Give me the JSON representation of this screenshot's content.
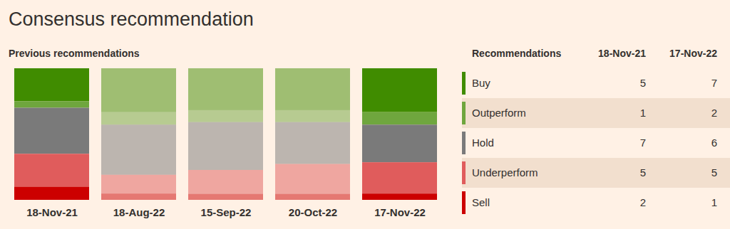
{
  "chart_data": {
    "type": "bar",
    "title": "Consensus recommendation",
    "subtitle": "Previous recommendations",
    "legend_title": "Recommendations",
    "legend": "right",
    "stacked": true,
    "tick_labels": "x",
    "categories": [
      "18-Nov-21",
      "18-Aug-22",
      "15-Sep-22",
      "20-Oct-22",
      "17-Nov-22"
    ],
    "series": [
      {
        "name": "Buy",
        "color": "#408c00",
        "values": [
          5,
          7,
          7,
          7,
          7
        ]
      },
      {
        "name": "Outperform",
        "color": "#6fa63e",
        "values": [
          1,
          2,
          2,
          2,
          2
        ]
      },
      {
        "name": "Hold",
        "color": "#7a7a7a",
        "values": [
          7,
          8,
          8,
          7,
          6
        ]
      },
      {
        "name": "Underperform",
        "color": "#e05c5c",
        "values": [
          5,
          3,
          4,
          5,
          5
        ]
      },
      {
        "name": "Sell",
        "color": "#cc0000",
        "values": [
          2,
          1,
          1,
          1,
          1
        ]
      }
    ]
  }
}
